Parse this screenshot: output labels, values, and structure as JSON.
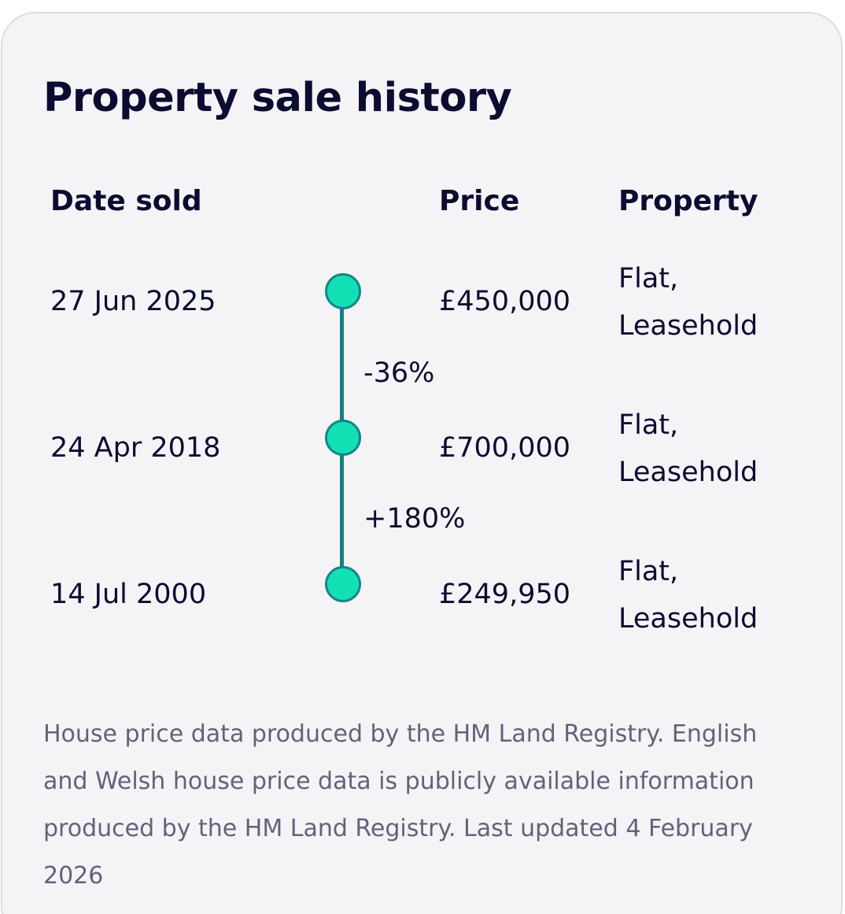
{
  "card": {
    "title": "Property sale history",
    "columns": {
      "date": "Date sold",
      "price": "Price",
      "property": "Property"
    },
    "sales": [
      {
        "date": "27 Jun 2025",
        "price": "£450,000",
        "property_type": "Flat,",
        "tenure": "Leasehold"
      },
      {
        "date": "24 Apr 2018",
        "price": "£700,000",
        "property_type": "Flat,",
        "tenure": "Leasehold"
      },
      {
        "date": "14 Jul 2000",
        "price": "£249,950",
        "property_type": "Flat,",
        "tenure": "Leasehold"
      }
    ],
    "changes": [
      "-36%",
      "+180%"
    ],
    "footnote": "House price data produced by the HM Land Registry. English and Welsh house price data is publicly available information produced by the HM Land Registry. Last updated 4 February 2026"
  },
  "colors": {
    "dot_fill": "#14e0b6",
    "dot_border": "#168686",
    "timeline": "#167f7f",
    "card_background": "#f4f4f7",
    "text_primary": "#0c0c30",
    "text_secondary": "#62627a"
  }
}
